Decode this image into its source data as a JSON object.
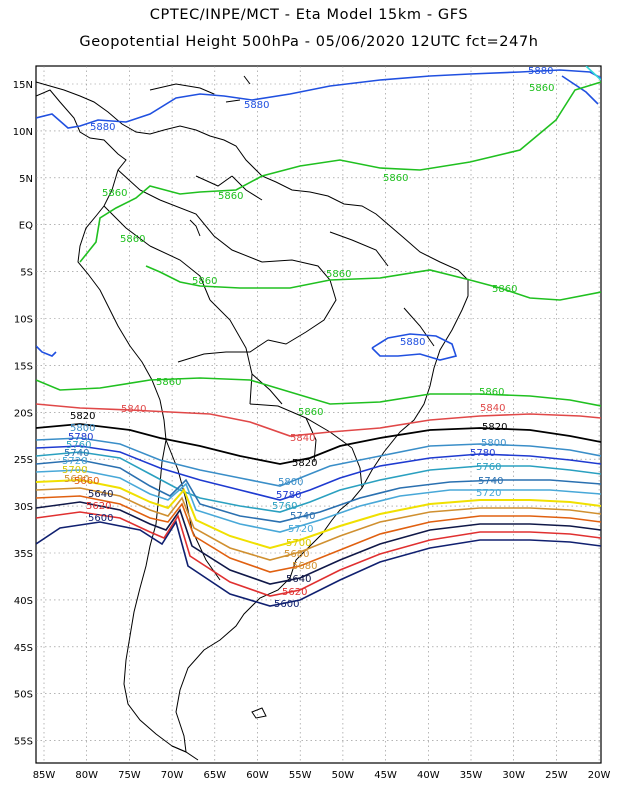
{
  "header": {
    "line1": "CPTEC/INPE/MCT  -   Eta Model 15km  -  GFS",
    "line2": "Geopotential Height 500hPa  -  05/06/2020 12UTC fct=247h"
  },
  "axes": {
    "lat_labels": [
      "15N",
      "10N",
      "5N",
      "EQ",
      "5S",
      "10S",
      "15S",
      "20S",
      "25S",
      "30S",
      "35S",
      "40S",
      "45S",
      "50S",
      "55S"
    ],
    "lon_labels": [
      "85W",
      "80W",
      "75W",
      "70W",
      "65W",
      "60W",
      "55W",
      "50W",
      "45W",
      "40W",
      "35W",
      "30W",
      "25W",
      "20W"
    ]
  },
  "contours": [
    {
      "value": "5880",
      "color": "#2050e0"
    },
    {
      "value": "5860",
      "color": "#20c020"
    },
    {
      "value": "5840",
      "color": "#e04848"
    },
    {
      "value": "5820",
      "color": "#000000"
    },
    {
      "value": "5800",
      "color": "#3a8ec8"
    },
    {
      "value": "5780",
      "color": "#1e3ad0"
    },
    {
      "value": "5760",
      "color": "#2aa0c0"
    },
    {
      "value": "5740",
      "color": "#2a70b0"
    },
    {
      "value": "5720",
      "color": "#48a8d8"
    },
    {
      "value": "5700",
      "color": "#f0e000"
    },
    {
      "value": "5680",
      "color": "#d09030"
    },
    {
      "value": "5660",
      "color": "#e06010"
    },
    {
      "value": "5640",
      "color": "#101848"
    },
    {
      "value": "5620",
      "color": "#e03030"
    },
    {
      "value": "5600",
      "color": "#102070"
    }
  ]
}
